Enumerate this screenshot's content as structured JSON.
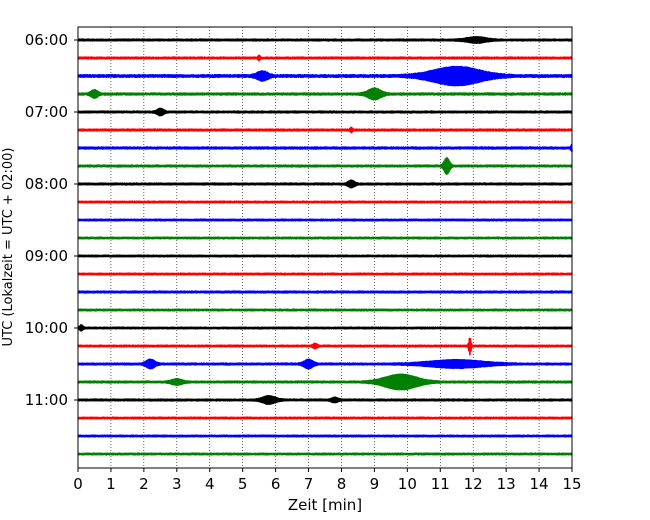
{
  "chart_data": {
    "type": "line",
    "subtype": "helicorder-seismogram",
    "xlabel": "Zeit  [min]",
    "ylabel": "UTC (Lokalzeit = UTC + 02:00)",
    "xlim": [
      0,
      15
    ],
    "x_ticks": [
      0,
      1,
      2,
      3,
      4,
      5,
      6,
      7,
      8,
      9,
      10,
      11,
      12,
      13,
      14,
      15
    ],
    "x_grid": "dotted vertical lines at each minute",
    "y_tick_labels": [
      "06:00",
      "07:00",
      "08:00",
      "09:00",
      "10:00",
      "11:00"
    ],
    "trace_colors": [
      "#000000",
      "#ff0000",
      "#0000ff",
      "#008000"
    ],
    "trace_start_times": [
      "06:00",
      "06:15",
      "06:30",
      "06:45",
      "07:00",
      "07:15",
      "07:30",
      "07:45",
      "08:00",
      "08:15",
      "08:30",
      "08:45",
      "09:00",
      "09:15",
      "09:30",
      "09:45",
      "10:00",
      "10:15",
      "10:30",
      "10:45",
      "11:00",
      "11:15",
      "11:30",
      "11:45"
    ],
    "trace_minutes_per_line": 15,
    "noise_amplitude": [
      0.9,
      0.9,
      1.3,
      1.0,
      0.9,
      0.9,
      1.0,
      0.9,
      0.9,
      0.8,
      0.8,
      0.8,
      0.8,
      0.8,
      0.9,
      0.8,
      0.8,
      0.8,
      0.9,
      0.9,
      0.9,
      0.8,
      0.8,
      0.8
    ],
    "events": [
      {
        "trace": 0,
        "minute": 12.1,
        "amplitude": 2.5,
        "width_min": 0.9
      },
      {
        "trace": 1,
        "minute": 5.5,
        "amplitude": 2.0,
        "width_min": 0.1
      },
      {
        "trace": 2,
        "minute": 5.6,
        "amplitude": 4.0,
        "width_min": 0.5
      },
      {
        "trace": 2,
        "minute": 11.5,
        "amplitude": 8.5,
        "width_min": 2.2
      },
      {
        "trace": 3,
        "minute": 0.5,
        "amplitude": 3.5,
        "width_min": 0.3
      },
      {
        "trace": 3,
        "minute": 9.0,
        "amplitude": 5.0,
        "width_min": 0.6
      },
      {
        "trace": 4,
        "minute": 2.5,
        "amplitude": 3.0,
        "width_min": 0.3
      },
      {
        "trace": 5,
        "minute": 8.3,
        "amplitude": 2.0,
        "width_min": 0.1
      },
      {
        "trace": 6,
        "minute": 15.0,
        "amplitude": 3.0,
        "width_min": 0.1
      },
      {
        "trace": 7,
        "minute": 11.2,
        "amplitude": 7.5,
        "width_min": 0.25
      },
      {
        "trace": 8,
        "minute": 8.3,
        "amplitude": 3.0,
        "width_min": 0.3
      },
      {
        "trace": 16,
        "minute": 0.1,
        "amplitude": 2.5,
        "width_min": 0.15
      },
      {
        "trace": 17,
        "minute": 7.2,
        "amplitude": 2.0,
        "width_min": 0.2
      },
      {
        "trace": 17,
        "minute": 11.9,
        "amplitude": 8.0,
        "width_min": 0.1
      },
      {
        "trace": 18,
        "minute": 2.2,
        "amplitude": 4.0,
        "width_min": 0.4
      },
      {
        "trace": 18,
        "minute": 7.0,
        "amplitude": 4.0,
        "width_min": 0.4
      },
      {
        "trace": 18,
        "minute": 11.5,
        "amplitude": 3.5,
        "width_min": 2.5
      },
      {
        "trace": 19,
        "minute": 3.0,
        "amplitude": 2.5,
        "width_min": 0.5
      },
      {
        "trace": 19,
        "minute": 9.8,
        "amplitude": 7.0,
        "width_min": 1.5
      },
      {
        "trace": 20,
        "minute": 5.8,
        "amplitude": 3.5,
        "width_min": 0.6
      },
      {
        "trace": 20,
        "minute": 7.8,
        "amplitude": 2.0,
        "width_min": 0.3
      }
    ]
  }
}
